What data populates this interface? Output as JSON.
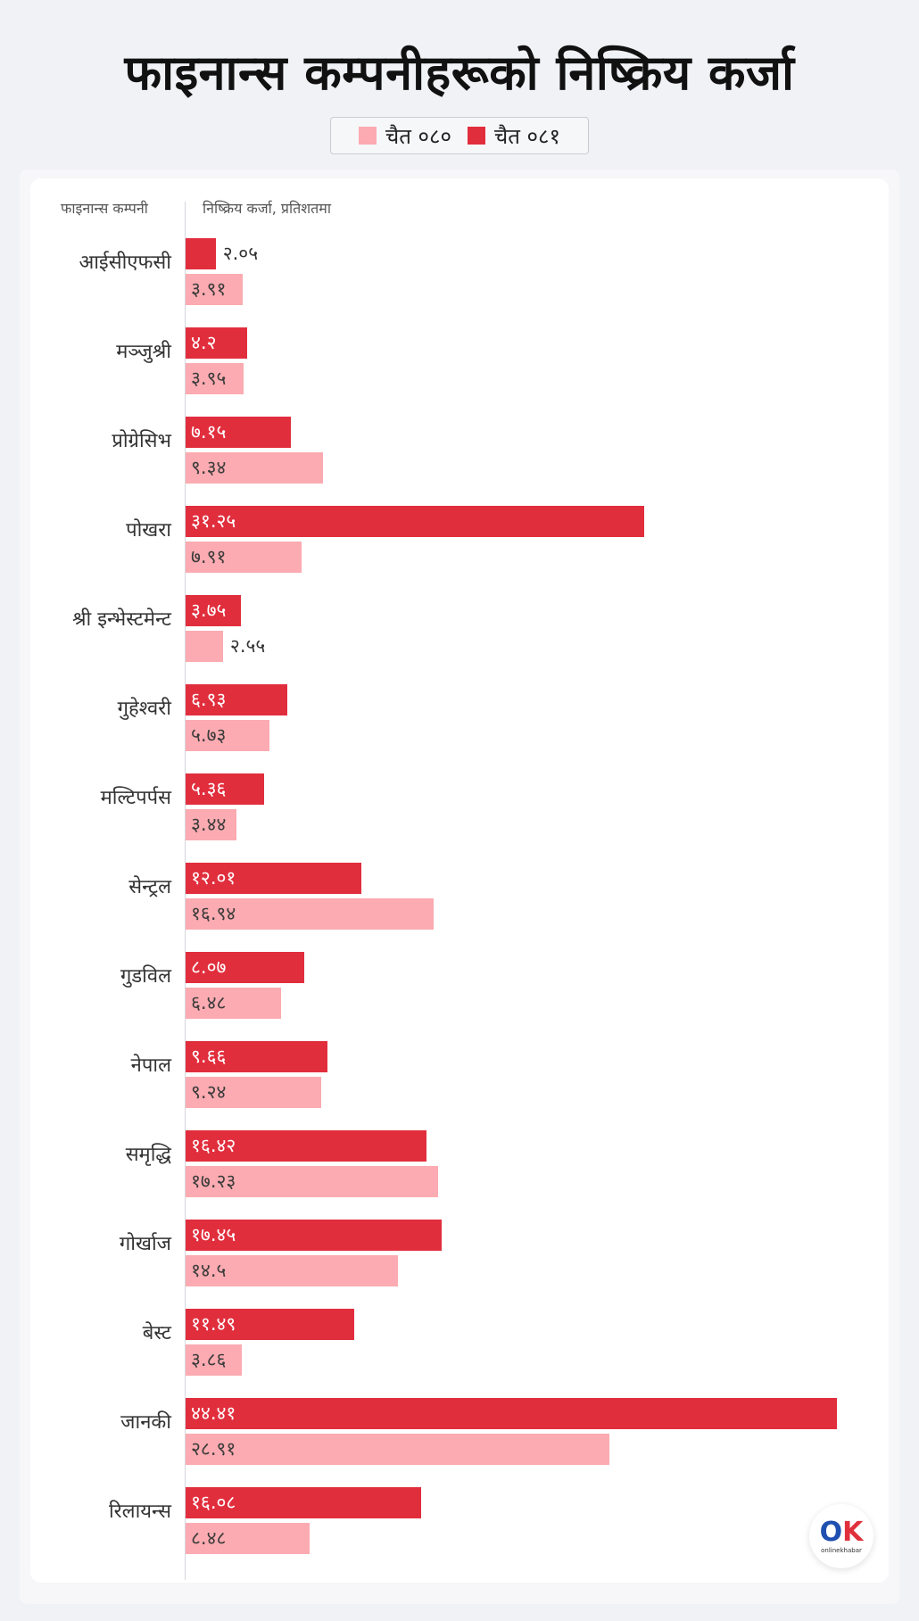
{
  "title": "फाइनान्स कम्पनीहरूको निष्क्रिय कर्जा",
  "legend": {
    "prev_label": "चैत ०८०",
    "curr_label": "चैत ०८१"
  },
  "columns": {
    "company": "फाइनान्स कम्पनी",
    "npl": "निष्क्रिय कर्जा, प्रतिशतमा"
  },
  "colors": {
    "prev": "#fbabb1",
    "curr": "#e12e3d"
  },
  "logo": {
    "mark_o": "O",
    "mark_k": "K",
    "text": "onlinekhabar"
  },
  "chart_data": {
    "type": "bar",
    "orientation": "horizontal",
    "categories": [
      "आईसीएफसी",
      "मञ्जुश्री",
      "प्रोग्रेसिभ",
      "पोखरा",
      "श्री इन्भेस्टमेन्ट",
      "गुहेश्वरी",
      "मल्टिपर्पस",
      "सेन्ट्रल",
      "गुडविल",
      "नेपाल",
      "समृद्धि",
      "गोर्खाज",
      "बेस्ट",
      "जानकी",
      "रिलायन्स"
    ],
    "series": [
      {
        "name": "चैत ०८१",
        "color": "#e12e3d",
        "values": [
          2.05,
          4.2,
          7.15,
          31.25,
          3.75,
          6.93,
          5.36,
          12.01,
          8.07,
          9.66,
          16.42,
          17.45,
          11.49,
          44.41,
          16.08
        ],
        "labels": [
          "२.०५",
          "४.२",
          "७.१५",
          "३१.२५",
          "३.७५",
          "६.९३",
          "५.३६",
          "१२.०१",
          "८.०७",
          "९.६६",
          "१६.४२",
          "१७.४५",
          "११.४९",
          "४४.४१",
          "१६.०८"
        ]
      },
      {
        "name": "चैत ०८०",
        "color": "#fbabb1",
        "values": [
          3.91,
          3.95,
          9.34,
          7.91,
          2.55,
          5.73,
          3.44,
          16.94,
          6.48,
          9.24,
          17.23,
          14.5,
          3.86,
          28.91,
          8.48
        ],
        "labels": [
          "३.९१",
          "३.९५",
          "९.३४",
          "७.९१",
          "२.५५",
          "५.७३",
          "३.४४",
          "१६.९४",
          "६.४८",
          "९.२४",
          "१७.२३",
          "१४.५",
          "३.८६",
          "२८.९१",
          "८.४८"
        ]
      }
    ],
    "xlim": [
      0,
      44.41
    ],
    "grid": false,
    "legend_position": "top-center"
  }
}
